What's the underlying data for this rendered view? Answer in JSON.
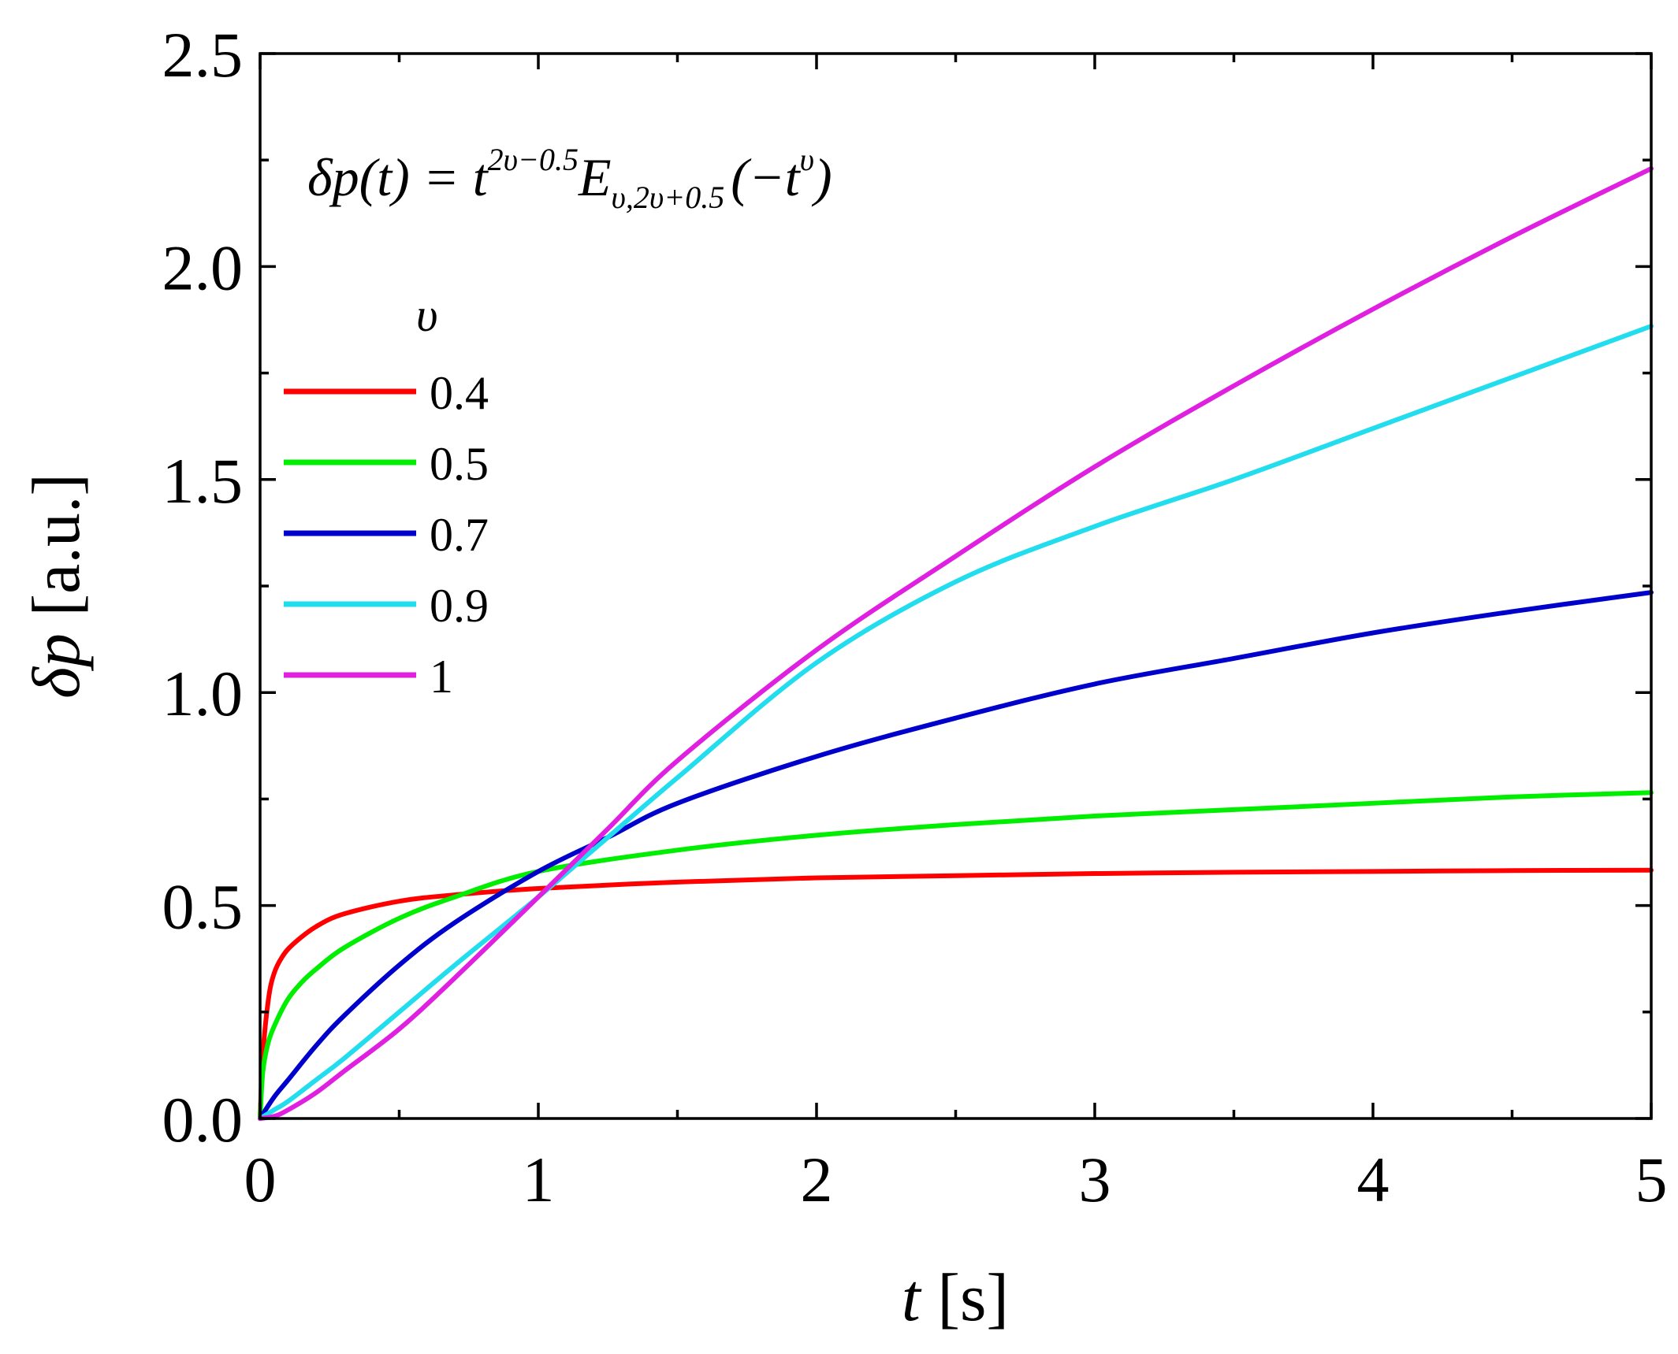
{
  "chart_data": {
    "type": "line",
    "formula": {
      "lhs": "δp(t) = ",
      "base": "t",
      "exponent": "2υ−0.5",
      "function": "E",
      "subscript": "υ,2υ+0.5",
      "argument": "(−t",
      "argument_exponent": "υ",
      "argument_close": ")"
    },
    "xlabel": {
      "var": "t",
      "unit": " [s]"
    },
    "ylabel": {
      "var": "δp",
      "unit": " [a.u.]"
    },
    "xlim": [
      0,
      5
    ],
    "ylim": [
      0,
      2.5
    ],
    "xticks": [
      0,
      1,
      2,
      3,
      4,
      5
    ],
    "xtick_labels": [
      "0",
      "1",
      "2",
      "3",
      "4",
      "5"
    ],
    "yticks": [
      0.0,
      0.5,
      1.0,
      1.5,
      2.0,
      2.5
    ],
    "ytick_labels": [
      "0.0",
      "0.5",
      "1.0",
      "1.5",
      "2.0",
      "2.5"
    ],
    "grid": false,
    "legend_title": "υ",
    "legend_position": "upper-left",
    "series": [
      {
        "name": "0.4",
        "color": "#ff0000",
        "x": [
          0,
          0.01,
          0.03,
          0.05,
          0.08,
          0.12,
          0.2,
          0.3,
          0.5,
          0.7,
          1.0,
          1.5,
          2.0,
          2.5,
          3.0,
          3.5,
          4.0,
          4.5,
          5.0
        ],
        "y": [
          0,
          0.15,
          0.28,
          0.34,
          0.38,
          0.41,
          0.45,
          0.48,
          0.51,
          0.525,
          0.54,
          0.555,
          0.565,
          0.57,
          0.575,
          0.578,
          0.58,
          0.582,
          0.583
        ]
      },
      {
        "name": "0.5",
        "color": "#00ee00",
        "x": [
          0,
          0.01,
          0.03,
          0.06,
          0.1,
          0.15,
          0.2,
          0.3,
          0.5,
          0.7,
          1.0,
          1.5,
          2.0,
          2.5,
          3.0,
          3.5,
          4.0,
          4.5,
          5.0
        ],
        "y": [
          0,
          0.11,
          0.18,
          0.23,
          0.28,
          0.32,
          0.35,
          0.4,
          0.47,
          0.52,
          0.58,
          0.63,
          0.665,
          0.69,
          0.71,
          0.725,
          0.74,
          0.755,
          0.765
        ]
      },
      {
        "name": "0.7",
        "color": "#0000cc",
        "x": [
          0,
          0.05,
          0.1,
          0.2,
          0.3,
          0.5,
          0.7,
          1.0,
          1.25,
          1.5,
          2.0,
          2.5,
          3.0,
          3.5,
          4.0,
          4.5,
          5.0
        ],
        "y": [
          0,
          0.05,
          0.09,
          0.17,
          0.24,
          0.36,
          0.46,
          0.58,
          0.66,
          0.74,
          0.85,
          0.94,
          1.02,
          1.08,
          1.14,
          1.19,
          1.235
        ]
      },
      {
        "name": "0.9",
        "color": "#22ddee",
        "x": [
          0,
          0.05,
          0.1,
          0.2,
          0.3,
          0.5,
          0.7,
          1.0,
          1.25,
          1.5,
          2.0,
          2.5,
          3.0,
          3.5,
          4.0,
          4.5,
          5.0
        ],
        "y": [
          0,
          0.02,
          0.04,
          0.09,
          0.14,
          0.25,
          0.36,
          0.52,
          0.66,
          0.8,
          1.07,
          1.26,
          1.39,
          1.5,
          1.62,
          1.74,
          1.86
        ]
      },
      {
        "name": "1",
        "color": "#e020e0",
        "x": [
          0,
          0.05,
          0.1,
          0.2,
          0.3,
          0.5,
          0.7,
          1.0,
          1.25,
          1.5,
          2.0,
          2.5,
          3.0,
          3.5,
          4.0,
          4.5,
          5.0
        ],
        "y": [
          0,
          0.005,
          0.02,
          0.06,
          0.11,
          0.21,
          0.33,
          0.52,
          0.68,
          0.84,
          1.1,
          1.32,
          1.53,
          1.72,
          1.9,
          2.07,
          2.23
        ]
      }
    ]
  }
}
